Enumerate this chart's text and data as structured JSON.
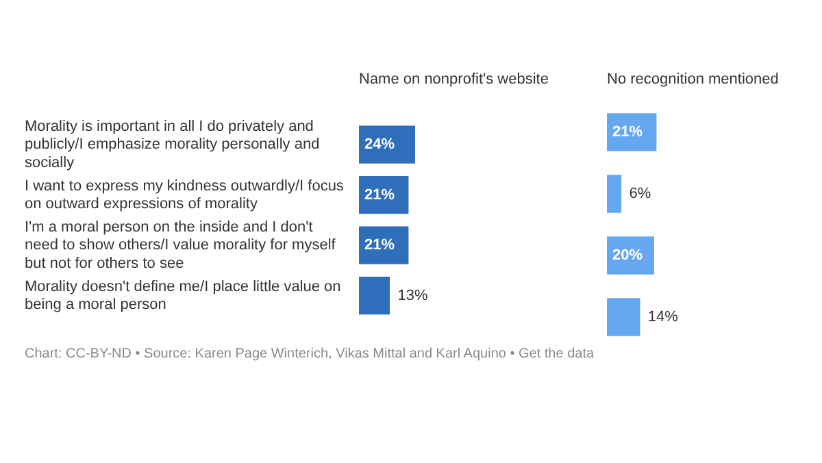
{
  "chart_data": [
    {
      "type": "bar",
      "orientation": "horizontal",
      "title": "Name on nonprofit's website",
      "categories": [
        "Morality is important in all I do privately and publicly/I emphasize morality personally and socially",
        "I want to express my kindness outwardly/I focus on outward expressions of morality",
        "I'm a moral person on the inside and I don't need to show others/I value morality for myself but not for others to see",
        "Morality doesn't define me/I place little value on being a moral person"
      ],
      "values": [
        24,
        21,
        21,
        13
      ],
      "value_labels": [
        "24%",
        "21%",
        "21%",
        "13%"
      ],
      "color": "#2f6eba",
      "tick_labels": "y",
      "annotations": [
        "Chart: CC-BY-ND • Source: Karen Page Winterich, Vikas Mittal and Karl Aquino • Get the data"
      ]
    },
    {
      "type": "bar",
      "orientation": "horizontal",
      "title": "No recognition mentioned",
      "values": [
        21,
        6,
        20,
        14
      ],
      "value_labels": [
        "21%",
        "6%",
        "20%",
        "14%"
      ],
      "color": "#66a8f0"
    }
  ]
}
